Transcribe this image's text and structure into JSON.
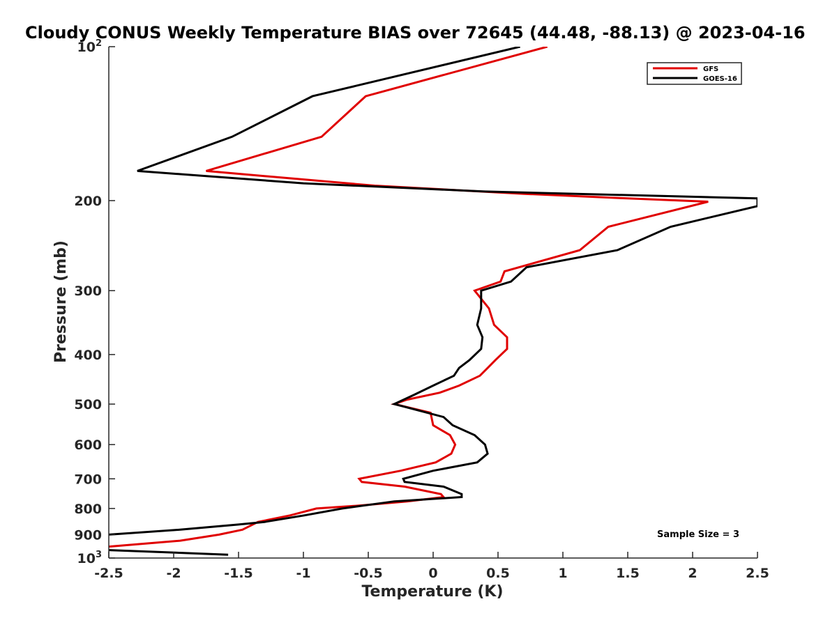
{
  "chart_data": {
    "type": "line",
    "title": "Cloudy CONUS Weekly Temperature BIAS over 72645 (44.48, -88.13) @ 2023-04-16",
    "xlabel": "Temperature (K)",
    "ylabel": "Pressure (mb)",
    "xlim": [
      -2.5,
      2.5
    ],
    "ylim": [
      100,
      1000
    ],
    "y_scale": "log",
    "y_reversed": true,
    "grid": false,
    "legend_position": "top-right",
    "x_ticks": [
      "-2.5",
      "-2",
      "-1.5",
      "-1",
      "-0.5",
      "0",
      "0.5",
      "1",
      "1.5",
      "2",
      "2.5"
    ],
    "y_ticks": [
      {
        "value": 100,
        "base": "10",
        "exp": "2"
      },
      {
        "value": 200,
        "label": "200"
      },
      {
        "value": 300,
        "label": "300"
      },
      {
        "value": 400,
        "label": "400"
      },
      {
        "value": 500,
        "label": "500"
      },
      {
        "value": 600,
        "label": "600"
      },
      {
        "value": 700,
        "label": "700"
      },
      {
        "value": 800,
        "label": "800"
      },
      {
        "value": 900,
        "label": "900"
      },
      {
        "value": 1000,
        "base": "10",
        "exp": "3"
      }
    ],
    "series": [
      {
        "name": "GFS",
        "color": "#e00000",
        "points": [
          [
            0.88,
            100
          ],
          [
            -0.52,
            125
          ],
          [
            -0.86,
            150
          ],
          [
            -1.75,
            175
          ],
          [
            -0.45,
            187
          ],
          [
            0.7,
            194
          ],
          [
            1.5,
            198
          ],
          [
            2.12,
            201
          ],
          [
            1.35,
            225
          ],
          [
            1.13,
            250
          ],
          [
            0.55,
            275
          ],
          [
            0.52,
            288
          ],
          [
            0.32,
            300
          ],
          [
            0.43,
            325
          ],
          [
            0.47,
            350
          ],
          [
            0.57,
            370
          ],
          [
            0.57,
            390
          ],
          [
            0.48,
            410
          ],
          [
            0.42,
            425
          ],
          [
            0.36,
            440
          ],
          [
            0.2,
            460
          ],
          [
            0.05,
            475
          ],
          [
            -0.2,
            490
          ],
          [
            -0.3,
            500
          ],
          [
            -0.02,
            520
          ],
          [
            0.0,
            550
          ],
          [
            0.13,
            575
          ],
          [
            0.17,
            600
          ],
          [
            0.14,
            625
          ],
          [
            0.02,
            650
          ],
          [
            -0.25,
            675
          ],
          [
            -0.57,
            700
          ],
          [
            -0.55,
            710
          ],
          [
            -0.22,
            725
          ],
          [
            0.06,
            750
          ],
          [
            0.08,
            760
          ],
          [
            -0.2,
            775
          ],
          [
            -0.58,
            790
          ],
          [
            -0.9,
            800
          ],
          [
            -1.1,
            825
          ],
          [
            -1.35,
            850
          ],
          [
            -1.47,
            880
          ],
          [
            -1.65,
            900
          ],
          [
            -1.95,
            925
          ],
          [
            -2.5,
            950
          ]
        ]
      },
      {
        "name": "GOES-16",
        "color": "#000000",
        "points": [
          [
            0.67,
            100
          ],
          [
            -0.93,
            125
          ],
          [
            -1.55,
            150
          ],
          [
            -2.28,
            175
          ],
          [
            -1.0,
            185
          ],
          [
            0.4,
            192
          ],
          [
            2.5,
            198
          ],
          [
            2.5,
            205
          ],
          [
            1.83,
            225
          ],
          [
            1.42,
            250
          ],
          [
            0.72,
            270
          ],
          [
            0.6,
            288
          ],
          [
            0.37,
            300
          ],
          [
            0.37,
            325
          ],
          [
            0.34,
            350
          ],
          [
            0.38,
            370
          ],
          [
            0.37,
            390
          ],
          [
            0.28,
            410
          ],
          [
            0.2,
            425
          ],
          [
            0.16,
            440
          ],
          [
            0.0,
            460
          ],
          [
            -0.15,
            480
          ],
          [
            -0.3,
            500
          ],
          [
            0.08,
            530
          ],
          [
            0.15,
            550
          ],
          [
            0.32,
            575
          ],
          [
            0.4,
            600
          ],
          [
            0.42,
            625
          ],
          [
            0.34,
            650
          ],
          [
            0.0,
            675
          ],
          [
            -0.23,
            700
          ],
          [
            -0.22,
            710
          ],
          [
            0.08,
            725
          ],
          [
            0.22,
            750
          ],
          [
            0.22,
            760
          ],
          [
            -0.3,
            775
          ],
          [
            -0.7,
            800
          ],
          [
            -0.99,
            825
          ],
          [
            -1.3,
            850
          ],
          [
            -1.5,
            860
          ],
          [
            -1.95,
            880
          ],
          [
            -2.5,
            900
          ]
        ]
      },
      {
        "name": "",
        "color": "#000000",
        "points": [
          [
            -2.5,
            965
          ],
          [
            -1.58,
            985
          ]
        ]
      }
    ],
    "annotation": "Sample Size = 3"
  }
}
